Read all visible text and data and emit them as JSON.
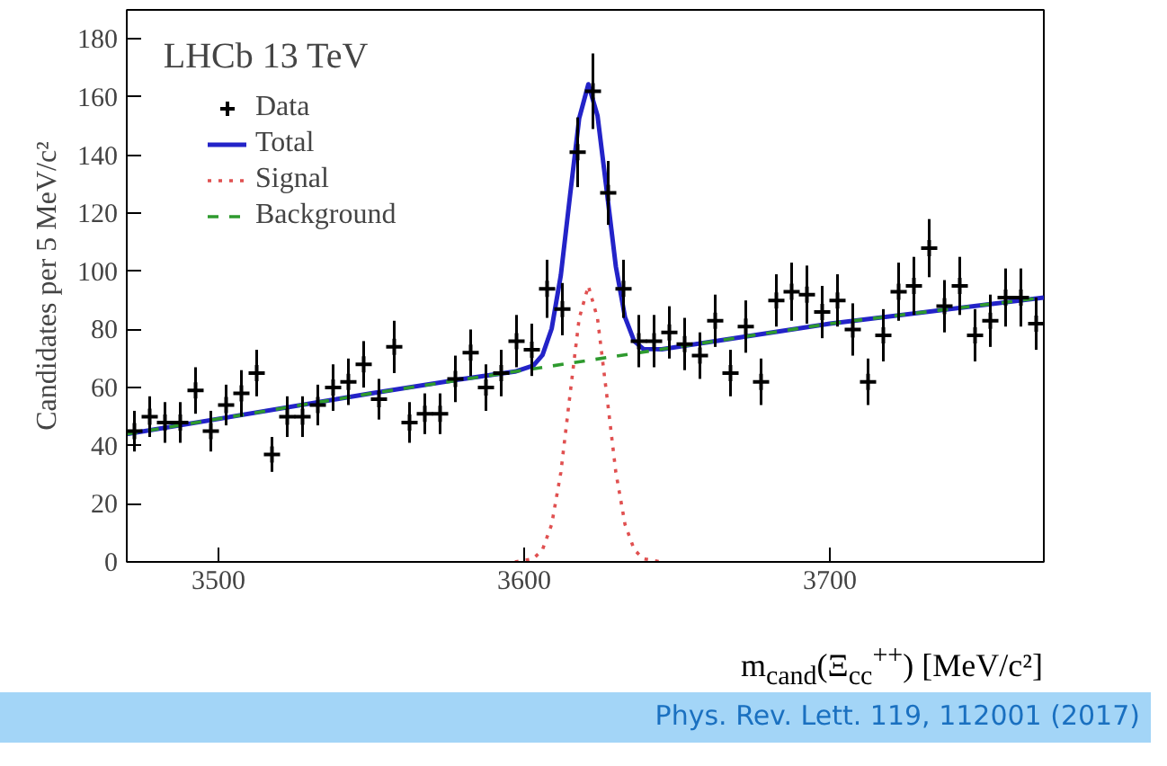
{
  "chart_data": {
    "type": "scatter",
    "xlabel": "m$_{cand}$(Ξ$_{cc}$$^{++}$) [MeV/c²]",
    "ylabel": "Candidates per 5 MeV/c²",
    "annotations": [
      "LHCb 13 TeV",
      "Phys. Rev. Lett. 119, 112001 (2017)"
    ],
    "xlim": [
      3470,
      3770
    ],
    "xticks": [
      3500,
      3600,
      3700
    ],
    "ylim": [
      0,
      190
    ],
    "yticks": [
      0,
      20,
      40,
      60,
      80,
      100,
      120,
      140,
      160,
      180
    ],
    "grid": false,
    "legend": "top left",
    "x": [
      3472.5,
      3477.5,
      3482.5,
      3487.5,
      3492.5,
      3497.5,
      3502.5,
      3507.5,
      3512.5,
      3517.5,
      3522.5,
      3527.5,
      3532.5,
      3537.5,
      3542.5,
      3547.5,
      3552.5,
      3557.5,
      3562.5,
      3567.5,
      3572.5,
      3577.5,
      3582.5,
      3587.5,
      3592.5,
      3597.5,
      3602.5,
      3607.5,
      3612.5,
      3617.5,
      3622.5,
      3627.5,
      3632.5,
      3637.5,
      3642.5,
      3647.5,
      3652.5,
      3657.5,
      3662.5,
      3667.5,
      3672.5,
      3677.5,
      3682.5,
      3687.5,
      3692.5,
      3697.5,
      3702.5,
      3707.5,
      3712.5,
      3717.5,
      3722.5,
      3727.5,
      3732.5,
      3737.5,
      3742.5,
      3747.5,
      3752.5,
      3757.5,
      3762.5,
      3767.5
    ],
    "series": [
      {
        "name": "Data",
        "marker": "cross",
        "color": "#000000",
        "values": [
          45,
          50,
          48,
          48,
          59,
          45,
          54,
          58,
          65,
          37,
          50,
          50,
          54,
          60,
          62,
          68,
          56,
          74,
          48,
          51,
          51,
          63,
          72,
          60,
          65,
          76,
          73,
          94,
          87,
          141,
          162,
          127,
          94,
          76,
          76,
          79,
          75,
          71,
          83,
          65,
          81,
          62,
          90,
          93,
          92,
          86,
          90,
          80,
          62,
          78,
          93,
          95,
          108,
          88,
          95,
          78,
          83,
          91,
          91,
          82
        ],
        "errors": [
          7,
          7,
          7,
          7,
          8,
          7,
          7,
          8,
          8,
          6,
          7,
          7,
          7,
          8,
          8,
          8,
          7,
          9,
          7,
          7,
          7,
          8,
          8,
          8,
          8,
          9,
          9,
          10,
          9,
          12,
          13,
          11,
          10,
          9,
          9,
          9,
          9,
          8,
          9,
          8,
          9,
          8,
          9,
          10,
          10,
          9,
          9,
          9,
          8,
          9,
          10,
          10,
          10,
          9,
          10,
          9,
          9,
          10,
          10,
          9
        ]
      },
      {
        "name": "Total",
        "type": "line",
        "color": "#2323c8",
        "line_style": "solid",
        "x": [
          3470,
          3550,
          3580,
          3597,
          3603,
          3606,
          3609,
          3612,
          3615,
          3618,
          3621,
          3624,
          3627,
          3630,
          3633,
          3636,
          3639,
          3645,
          3660,
          3700,
          3770
        ],
        "values": [
          44,
          58,
          63,
          65.5,
          67.6,
          71.2,
          80.3,
          98.7,
          126,
          152.7,
          164.4,
          153.6,
          127.9,
          101.6,
          84.2,
          76,
          73.3,
          73.2,
          75.6,
          82,
          91
        ]
      },
      {
        "name": "Signal",
        "type": "line",
        "color": "#e05050",
        "line_style": "dotted",
        "x": [
          3597,
          3603,
          3606,
          3609,
          3612,
          3615,
          3618,
          3621,
          3624,
          3627,
          3630,
          3633,
          3636,
          3639,
          3645
        ],
        "values": [
          0,
          1.1,
          4.2,
          12.9,
          30.8,
          57.6,
          83.8,
          95,
          83.8,
          57.6,
          30.8,
          12.9,
          4.2,
          1.1,
          0
        ]
      },
      {
        "name": "Background",
        "type": "line",
        "color": "#2e9a2e",
        "line_style": "dashed",
        "x": [
          3470,
          3550,
          3600,
          3650,
          3700,
          3770
        ],
        "values": [
          44,
          58,
          66,
          74,
          82,
          91
        ]
      }
    ]
  }
}
